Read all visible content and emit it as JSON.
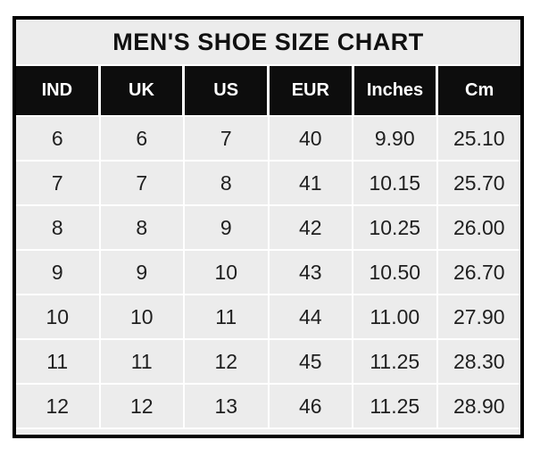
{
  "chart_data": {
    "type": "table",
    "title": "MEN'S SHOE SIZE CHART",
    "columns": [
      "IND",
      "UK",
      "US",
      "EUR",
      "Inches",
      "Cm"
    ],
    "rows": [
      [
        "6",
        "6",
        "7",
        "40",
        "9.90",
        "25.10"
      ],
      [
        "7",
        "7",
        "8",
        "41",
        "10.15",
        "25.70"
      ],
      [
        "8",
        "8",
        "9",
        "42",
        "10.25",
        "26.00"
      ],
      [
        "9",
        "9",
        "10",
        "43",
        "10.50",
        "26.70"
      ],
      [
        "10",
        "10",
        "11",
        "44",
        "11.00",
        "27.90"
      ],
      [
        "11",
        "11",
        "12",
        "45",
        "11.25",
        "28.30"
      ],
      [
        "12",
        "12",
        "13",
        "46",
        "11.25",
        "28.90"
      ]
    ],
    "layout": {
      "grid": "on",
      "header_style": "inverse"
    }
  },
  "colors": {
    "page_background": "#ffffff",
    "table_border": "#000000",
    "title_background": "#ececec",
    "header_background": "#0d0d0d",
    "header_text": "#ffffff",
    "cell_background": "#ececec",
    "body_text": "#1f1f1f",
    "gridline": "#ffffff"
  }
}
